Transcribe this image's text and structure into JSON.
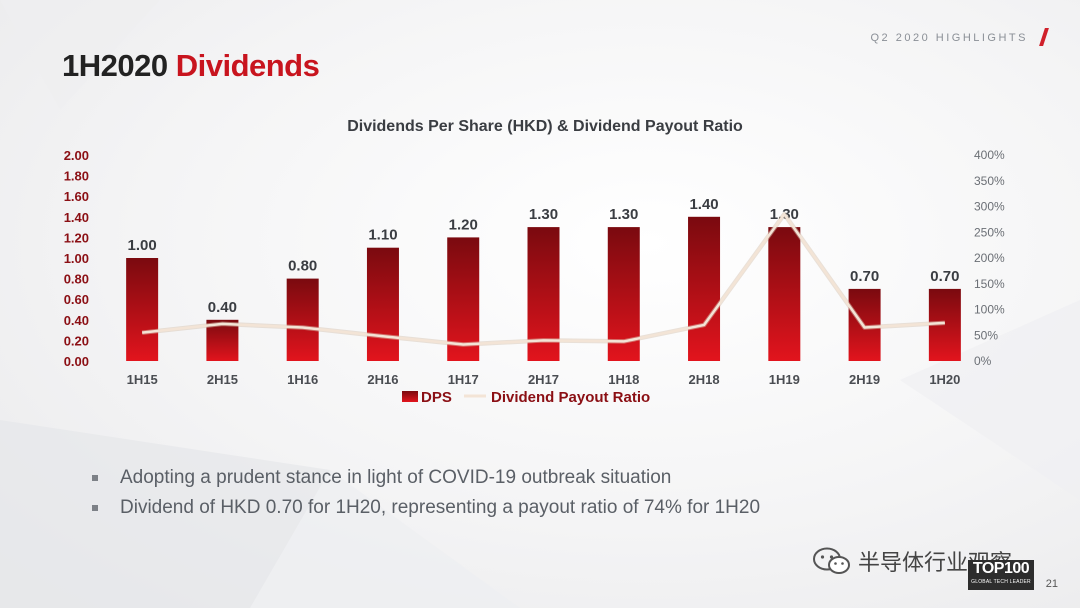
{
  "header": {
    "tag": "Q2 2020 HIGHLIGHTS"
  },
  "title": {
    "prefix": "1H2020",
    "accent": "Dividends"
  },
  "chart_data": {
    "type": "bar+line",
    "title": "Dividends Per Share (HKD) & Dividend Payout Ratio",
    "categories": [
      "1H15",
      "2H15",
      "1H16",
      "2H16",
      "1H17",
      "2H17",
      "1H18",
      "2H18",
      "1H19",
      "2H19",
      "1H20"
    ],
    "series": [
      {
        "name": "DPS",
        "type": "bar",
        "axis": "left",
        "values": [
          1.0,
          0.4,
          0.8,
          1.1,
          1.2,
          1.3,
          1.3,
          1.4,
          1.3,
          0.7,
          0.7
        ],
        "labels": [
          "1.00",
          "0.40",
          "0.80",
          "1.10",
          "1.20",
          "1.30",
          "1.30",
          "1.40",
          "1.30",
          "0.70",
          "0.70"
        ]
      },
      {
        "name": "Dividend Payout Ratio",
        "type": "line",
        "axis": "right",
        "values": [
          55,
          72,
          65,
          48,
          32,
          40,
          38,
          70,
          285,
          65,
          74
        ]
      }
    ],
    "y_left": {
      "min": 0,
      "max": 2.0,
      "ticks": [
        "0.00",
        "0.20",
        "0.40",
        "0.60",
        "0.80",
        "1.00",
        "1.20",
        "1.40",
        "1.60",
        "1.80",
        "2.00"
      ]
    },
    "y_right": {
      "min": 0,
      "max": 400,
      "ticks": [
        "0%",
        "50%",
        "100%",
        "150%",
        "200%",
        "250%",
        "300%",
        "350%",
        "400%"
      ]
    },
    "legend_position": "bottom",
    "grid": false,
    "colors": {
      "bar_top": "#7a0a0f",
      "bar_bottom": "#e2141d",
      "line": "#f3e4d6",
      "left_axis_text": "#8b0f14",
      "right_axis_text": "#6b6f75",
      "label_text": "#3a3d42"
    }
  },
  "bullets": [
    "Adopting a prudent stance in light of COVID-19 outbreak situation",
    "Dividend of HKD 0.70 for 1H20, representing a payout ratio of 74% for 1H20"
  ],
  "watermark": {
    "icon": "wechat-icon",
    "text": "半导体行业观察"
  },
  "logo": {
    "big": "TOP100",
    "small": "GLOBAL TECH LEADER"
  },
  "page_number": "21"
}
